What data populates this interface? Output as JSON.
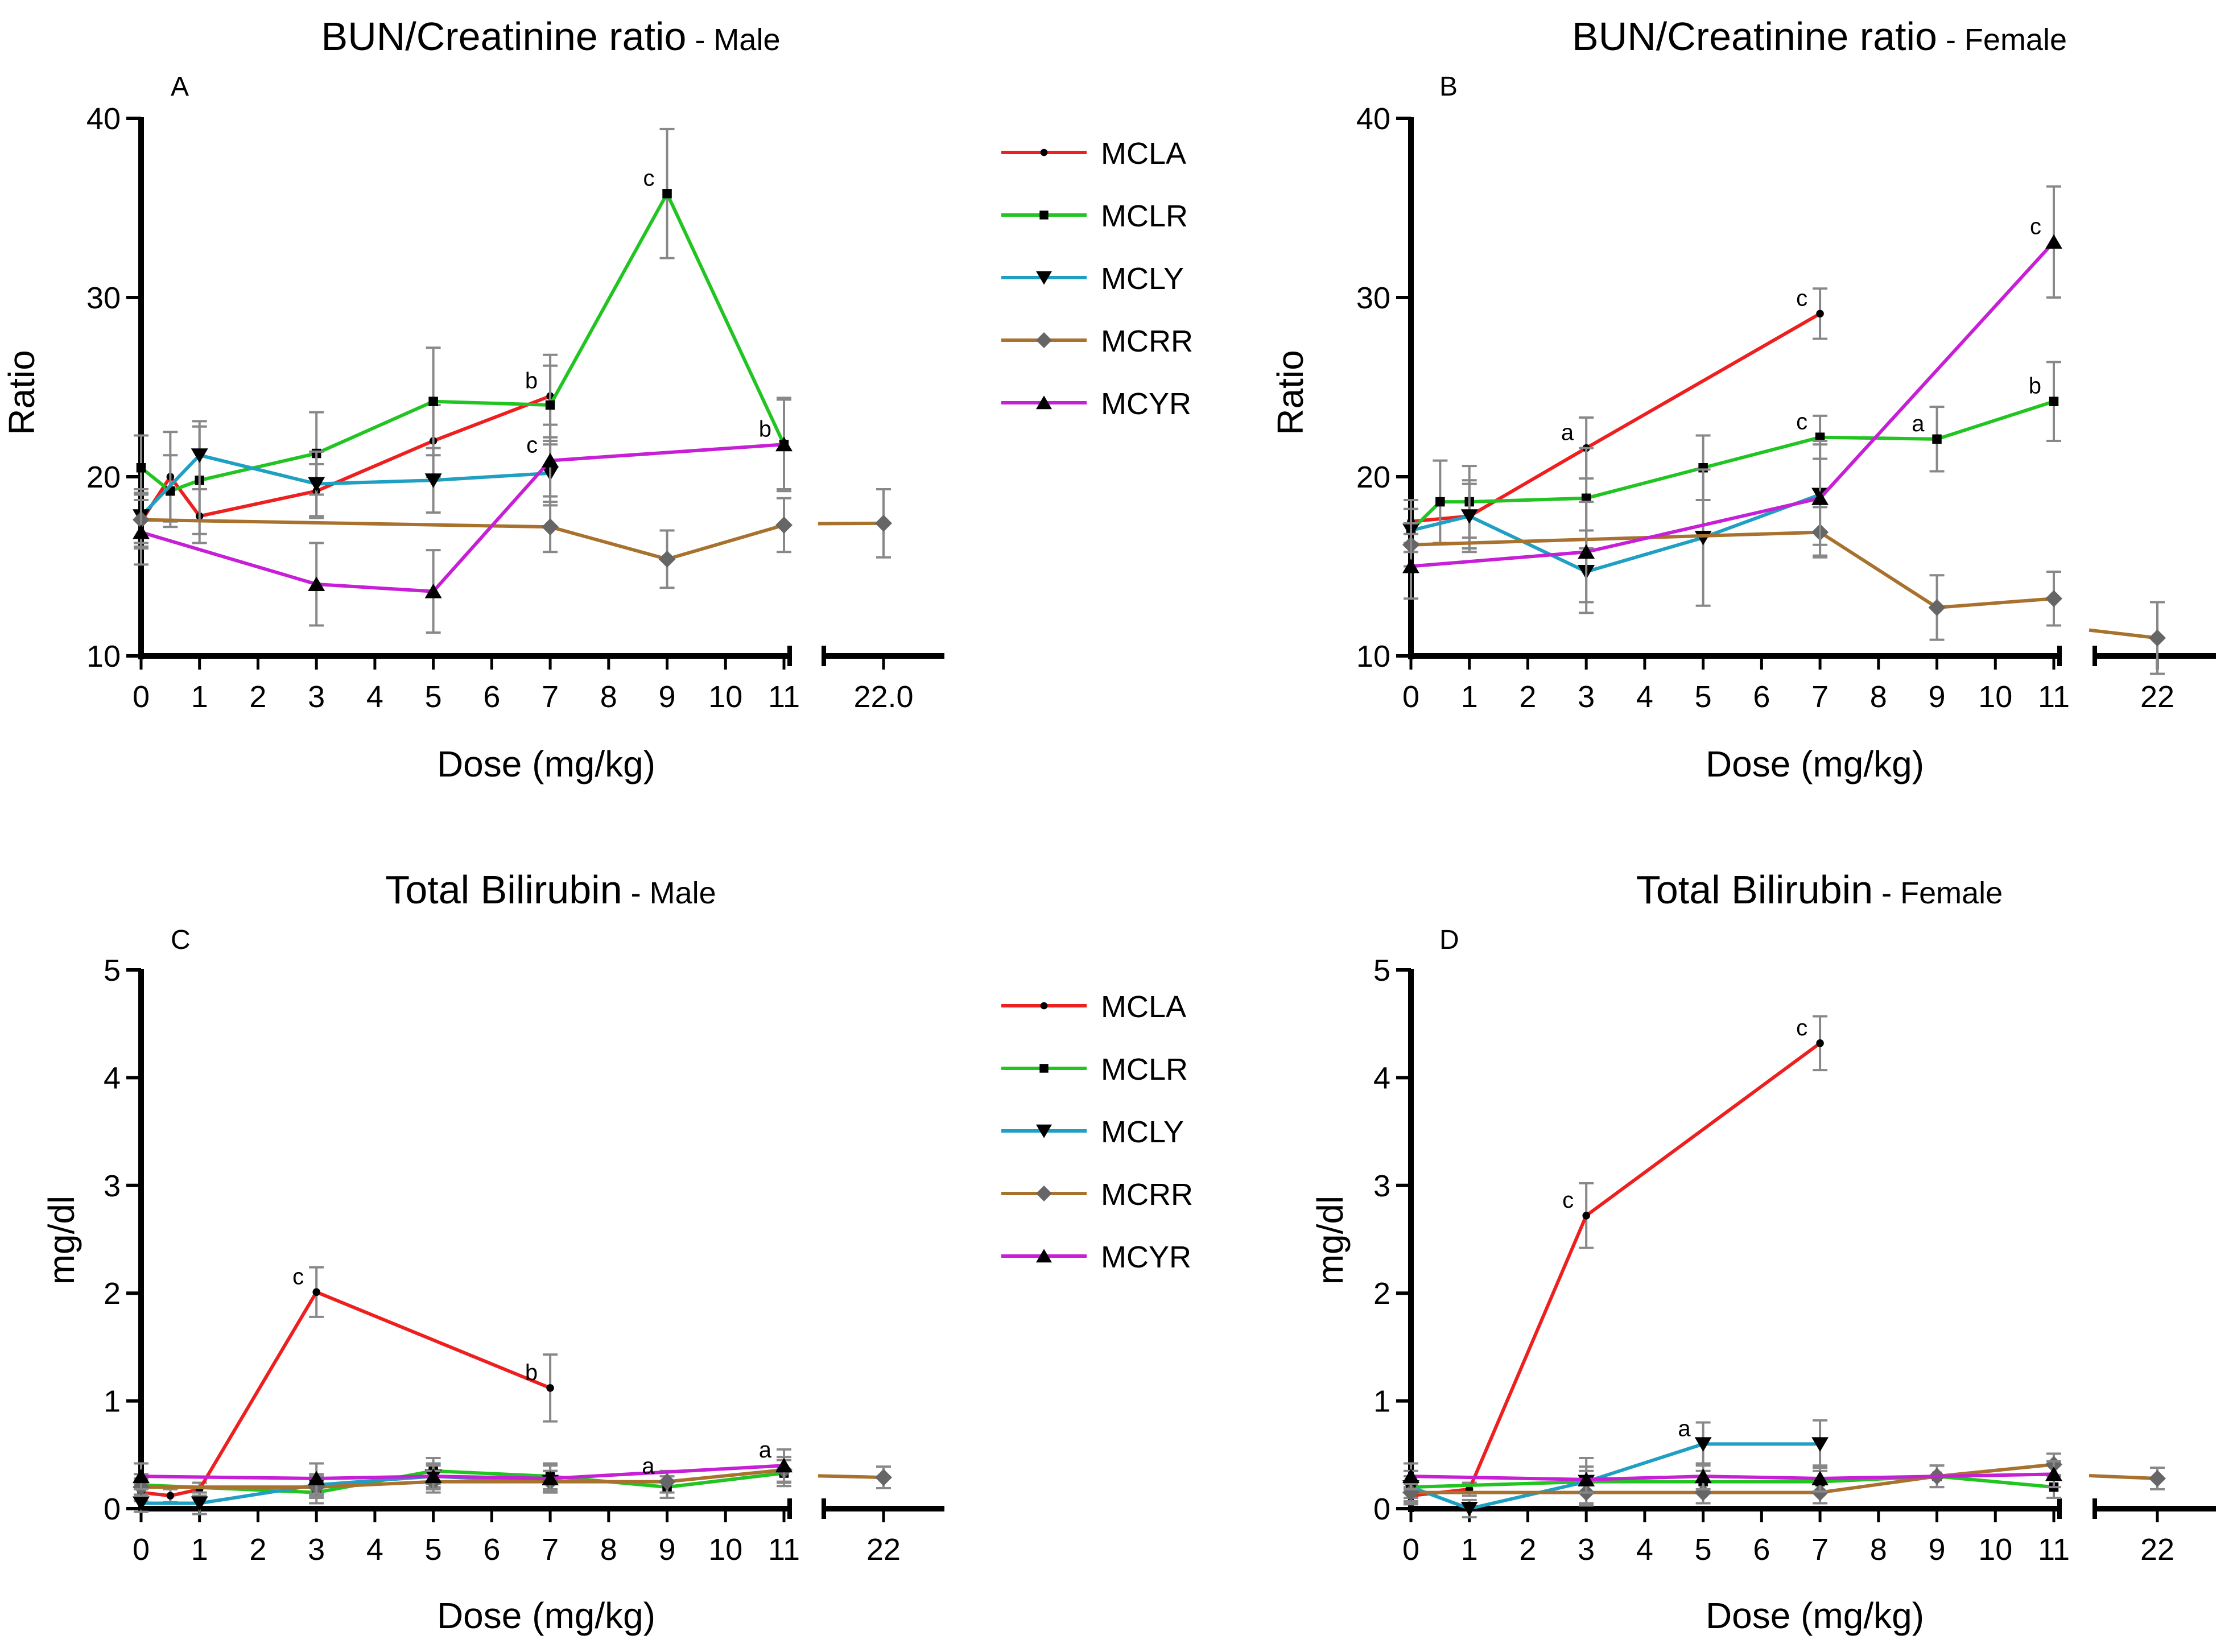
{
  "colors": {
    "MCLA": "#ee1f1f",
    "MCLR": "#22c422",
    "MCLY": "#1f9fc2",
    "MCRR": "#a8722e",
    "MCYR": "#c61fd6",
    "axis": "#000000",
    "marker": "#000000",
    "error": "#888888"
  },
  "legends": [
    {
      "entries": [
        {
          "name": "MCLA",
          "marker": "dot"
        },
        {
          "name": "MCLR",
          "marker": "square"
        },
        {
          "name": "MCLY",
          "marker": "tri-down"
        },
        {
          "name": "MCRR",
          "marker": "diamond"
        },
        {
          "name": "MCYR",
          "marker": "tri-up"
        }
      ]
    },
    {
      "entries": [
        {
          "name": "MCLA",
          "marker": "dot"
        },
        {
          "name": "MCLR",
          "marker": "square"
        },
        {
          "name": "MCLY",
          "marker": "tri-down"
        },
        {
          "name": "MCRR",
          "marker": "diamond"
        },
        {
          "name": "MCYR",
          "marker": "tri-up"
        }
      ]
    }
  ],
  "chart_data": [
    {
      "id": "A",
      "type": "line",
      "title": "BUN/Creatinine ratio",
      "title_suffix": " - Male",
      "xlabel": "Dose (mg/kg)",
      "ylabel": "Ratio",
      "ylim": [
        10,
        40
      ],
      "yticks": [
        10,
        20,
        30,
        40
      ],
      "xlim": [
        0,
        11
      ],
      "xticks": [
        0,
        1,
        2,
        3,
        4,
        5,
        6,
        7,
        8,
        9,
        10,
        11
      ],
      "break_x": 22,
      "break_label": "22.0",
      "series": [
        {
          "name": "MCLA",
          "x": [
            0,
            0.5,
            1,
            3,
            5,
            7
          ],
          "y": [
            17.5,
            20,
            17.8,
            19.2,
            22,
            24.5
          ],
          "err": [
            1.5,
            2.5,
            1.5,
            1.5,
            2,
            2.3
          ]
        },
        {
          "name": "MCLR",
          "x": [
            0,
            0.5,
            1,
            3,
            5,
            7,
            9,
            11
          ],
          "y": [
            20.5,
            19.2,
            19.8,
            21.3,
            24.2,
            24,
            35.8,
            21.8
          ],
          "err": [
            1.8,
            2,
            3,
            2.3,
            3,
            2.2,
            3.6,
            2.5
          ]
        },
        {
          "name": "MCLY",
          "x": [
            0,
            1,
            3,
            5,
            7
          ],
          "y": [
            17.8,
            21.2,
            19.6,
            19.8,
            20.2
          ],
          "err": [
            1.5,
            1.9,
            1.8,
            1.8,
            1.8
          ]
        },
        {
          "name": "MCRR",
          "x": [
            0,
            7,
            9,
            11,
            22
          ],
          "y": [
            17.6,
            17.2,
            15.4,
            17.3,
            17.4
          ],
          "err": [
            1.5,
            1.4,
            1.6,
            1.5,
            1.9
          ]
        },
        {
          "name": "MCYR",
          "x": [
            0,
            3,
            5,
            7,
            11
          ],
          "y": [
            16.9,
            14,
            13.6,
            20.9,
            21.8
          ],
          "err": [
            1.8,
            2.3,
            2.3,
            2,
            2.6
          ]
        }
      ],
      "annotations": [
        {
          "text": "b",
          "x": 7,
          "y": 24.5
        },
        {
          "text": "c",
          "x": 9,
          "y": 35.8
        },
        {
          "text": "c",
          "x": 7,
          "y": 20.9
        },
        {
          "text": "b",
          "x": 11,
          "y": 21.8
        }
      ]
    },
    {
      "id": "B",
      "type": "line",
      "title": "BUN/Creatinine ratio",
      "title_suffix": " - Female",
      "xlabel": "Dose (mg/kg)",
      "ylabel": "Ratio",
      "ylim": [
        10,
        40
      ],
      "yticks": [
        10,
        20,
        30,
        40
      ],
      "xlim": [
        0,
        11
      ],
      "xticks": [
        0,
        1,
        2,
        3,
        4,
        5,
        6,
        7,
        8,
        9,
        10,
        11
      ],
      "break_x": 22,
      "break_label": "22",
      "series": [
        {
          "name": "MCLA",
          "x": [
            0,
            1,
            3,
            7
          ],
          "y": [
            17.5,
            17.8,
            21.6,
            29.1
          ],
          "err": [
            1.2,
            1.8,
            1.7,
            1.4
          ]
        },
        {
          "name": "MCLR",
          "x": [
            0,
            0.5,
            1,
            3,
            5,
            7,
            9,
            11
          ],
          "y": [
            17,
            18.6,
            18.6,
            18.8,
            20.5,
            22.2,
            22.1,
            24.2
          ],
          "err": [
            1.2,
            2.3,
            2,
            2.8,
            1.8,
            1.2,
            1.8,
            2.2
          ]
        },
        {
          "name": "MCLY",
          "x": [
            0,
            1,
            3,
            5,
            7
          ],
          "y": [
            17,
            17.8,
            14.7,
            16.6,
            19
          ],
          "err": [
            1.2,
            2,
            2.3,
            3.8,
            2.8
          ]
        },
        {
          "name": "MCRR",
          "x": [
            0,
            7,
            9,
            11,
            22
          ],
          "y": [
            16.2,
            16.9,
            12.7,
            13.2,
            11
          ],
          "err": [
            1.2,
            1.4,
            1.8,
            1.5,
            2
          ]
        },
        {
          "name": "MCYR",
          "x": [
            0,
            3,
            7,
            11
          ],
          "y": [
            15,
            15.8,
            18.8,
            33.1
          ],
          "err": [
            1.8,
            2.8,
            3.2,
            3.1
          ]
        }
      ],
      "annotations": [
        {
          "text": "a",
          "x": 3,
          "y": 21.6
        },
        {
          "text": "c",
          "x": 7,
          "y": 29.1
        },
        {
          "text": "c",
          "x": 7,
          "y": 22.2
        },
        {
          "text": "a",
          "x": 9,
          "y": 22.1
        },
        {
          "text": "c",
          "x": 11,
          "y": 33.1
        },
        {
          "text": "b",
          "x": 11,
          "y": 24.2
        }
      ]
    },
    {
      "id": "C",
      "type": "line",
      "title": "Total Bilirubin",
      "title_suffix": " - Male",
      "xlabel": "Dose (mg/kg)",
      "ylabel": "mg/dl",
      "ylim": [
        0,
        5
      ],
      "yticks": [
        0,
        1,
        2,
        3,
        4,
        5
      ],
      "xlim": [
        0,
        11
      ],
      "xticks": [
        0,
        1,
        2,
        3,
        4,
        5,
        6,
        7,
        8,
        9,
        10,
        11
      ],
      "break_x": 22,
      "break_label": "22",
      "series": [
        {
          "name": "MCLA",
          "x": [
            0,
            0.5,
            1,
            3,
            7
          ],
          "y": [
            0.15,
            0.12,
            0.18,
            2.01,
            1.12
          ],
          "err": [
            0.08,
            0.06,
            0.06,
            0.23,
            0.31
          ]
        },
        {
          "name": "MCLR",
          "x": [
            0,
            3,
            5,
            7,
            9,
            11
          ],
          "y": [
            0.22,
            0.15,
            0.35,
            0.3,
            0.2,
            0.33
          ],
          "err": [
            0.1,
            0.1,
            0.12,
            0.12,
            0.1,
            0.12
          ]
        },
        {
          "name": "MCLY",
          "x": [
            0,
            1,
            3,
            5,
            7
          ],
          "y": [
            0.05,
            0.05,
            0.22,
            0.3,
            0.25
          ],
          "err": [
            0.08,
            0.1,
            0.1,
            0.1,
            0.1
          ]
        },
        {
          "name": "MCRR",
          "x": [
            0,
            3,
            5,
            7,
            9,
            11,
            22
          ],
          "y": [
            0.2,
            0.2,
            0.25,
            0.25,
            0.25,
            0.36,
            0.29
          ],
          "err": [
            0.08,
            0.1,
            0.1,
            0.1,
            0.1,
            0.12,
            0.1
          ]
        },
        {
          "name": "MCYR",
          "x": [
            0,
            3,
            5,
            7,
            11
          ],
          "y": [
            0.3,
            0.28,
            0.3,
            0.28,
            0.4
          ],
          "err": [
            0.12,
            0.14,
            0.12,
            0.12,
            0.15
          ]
        }
      ],
      "annotations": [
        {
          "text": "c",
          "x": 3,
          "y": 2.01
        },
        {
          "text": "b",
          "x": 7,
          "y": 1.12
        },
        {
          "text": "a",
          "x": 9,
          "y": 0.25
        },
        {
          "text": "a",
          "x": 11,
          "y": 0.4
        }
      ]
    },
    {
      "id": "D",
      "type": "line",
      "title": "Total Bilirubin",
      "title_suffix": " - Female",
      "xlabel": "Dose (mg/kg)",
      "ylabel": "mg/dl",
      "ylim": [
        0,
        5
      ],
      "yticks": [
        0,
        1,
        2,
        3,
        4,
        5
      ],
      "xlim": [
        0,
        11
      ],
      "xticks": [
        0,
        1,
        2,
        3,
        4,
        5,
        6,
        7,
        8,
        9,
        10,
        11
      ],
      "break_x": 22,
      "break_label": "22",
      "series": [
        {
          "name": "MCLA",
          "x": [
            0,
            1,
            3,
            7
          ],
          "y": [
            0.12,
            0.18,
            2.72,
            4.32
          ],
          "err": [
            0.08,
            0.06,
            0.3,
            0.25
          ]
        },
        {
          "name": "MCLR",
          "x": [
            0,
            3,
            5,
            7,
            9,
            11
          ],
          "y": [
            0.2,
            0.25,
            0.25,
            0.25,
            0.3,
            0.2
          ],
          "err": [
            0.1,
            0.1,
            0.1,
            0.1,
            0.1,
            0.1
          ]
        },
        {
          "name": "MCLY",
          "x": [
            0,
            1,
            3,
            5,
            7
          ],
          "y": [
            0.2,
            0,
            0.25,
            0.6,
            0.6
          ],
          "err": [
            0.15,
            0.08,
            0.22,
            0.2,
            0.22
          ]
        },
        {
          "name": "MCRR",
          "x": [
            0,
            3,
            5,
            7,
            9,
            11,
            22
          ],
          "y": [
            0.15,
            0.15,
            0.15,
            0.15,
            0.3,
            0.41,
            0.28
          ],
          "err": [
            0.08,
            0.1,
            0.1,
            0.1,
            0.1,
            0.1,
            0.1
          ]
        },
        {
          "name": "MCYR",
          "x": [
            0,
            3,
            5,
            7,
            11
          ],
          "y": [
            0.3,
            0.27,
            0.3,
            0.28,
            0.32
          ],
          "err": [
            0.12,
            0.12,
            0.12,
            0.12,
            0.12
          ]
        }
      ],
      "annotations": [
        {
          "text": "c",
          "x": 3,
          "y": 2.72
        },
        {
          "text": "c",
          "x": 7,
          "y": 4.32
        },
        {
          "text": "a",
          "x": 5,
          "y": 0.6
        }
      ]
    }
  ]
}
